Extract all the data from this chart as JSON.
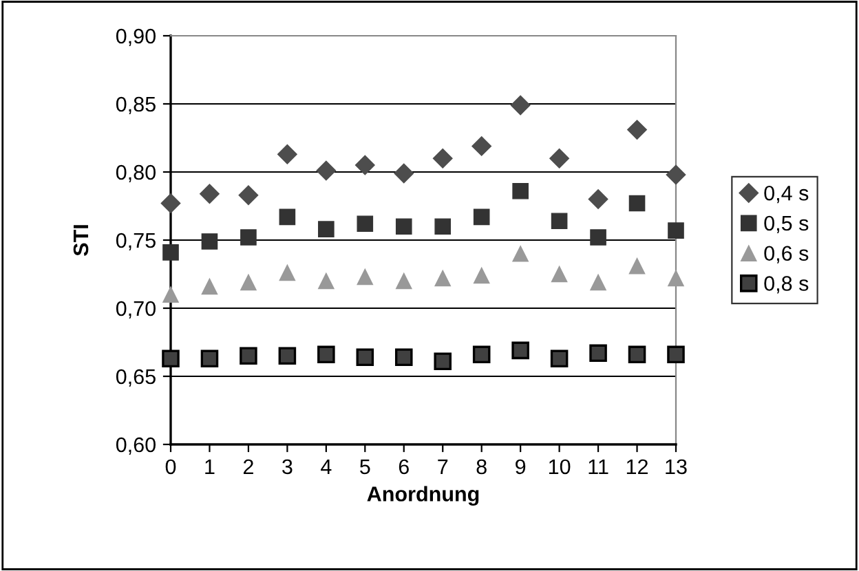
{
  "chart_data": {
    "type": "scatter",
    "xlabel": "Anordnung",
    "ylabel": "STI",
    "x": [
      0,
      1,
      2,
      3,
      4,
      5,
      6,
      7,
      8,
      9,
      10,
      11,
      12,
      13
    ],
    "xlim": [
      0,
      13
    ],
    "xticks": [
      0,
      1,
      2,
      3,
      4,
      5,
      6,
      7,
      8,
      9,
      10,
      11,
      12,
      13
    ],
    "ylim": [
      0.6,
      0.9
    ],
    "yticks": [
      {
        "value": 0.6,
        "label": "0,60"
      },
      {
        "value": 0.65,
        "label": "0,65"
      },
      {
        "value": 0.7,
        "label": "0,70"
      },
      {
        "value": 0.75,
        "label": "0,75"
      },
      {
        "value": 0.8,
        "label": "0,80"
      },
      {
        "value": 0.85,
        "label": "0,85"
      },
      {
        "value": 0.9,
        "label": "0,90"
      }
    ],
    "grid": "y",
    "legend": "right",
    "series": [
      {
        "name": "0,4 s",
        "color": "#4d4d4d",
        "marker": "diamond",
        "values": [
          0.777,
          0.784,
          0.783,
          0.813,
          0.801,
          0.805,
          0.799,
          0.81,
          0.819,
          0.849,
          0.81,
          0.78,
          0.831,
          0.798
        ]
      },
      {
        "name": "0,5 s",
        "color": "#333333",
        "marker": "square",
        "values": [
          0.741,
          0.749,
          0.752,
          0.767,
          0.758,
          0.762,
          0.76,
          0.76,
          0.767,
          0.786,
          0.764,
          0.752,
          0.777,
          0.757
        ]
      },
      {
        "name": "0,6 s",
        "color": "#999999",
        "marker": "triangle",
        "values": [
          0.71,
          0.716,
          0.719,
          0.726,
          0.72,
          0.723,
          0.72,
          0.722,
          0.724,
          0.74,
          0.725,
          0.719,
          0.731,
          0.722
        ]
      },
      {
        "name": "0,8 s",
        "color": "#404040",
        "marker": "square",
        "values": [
          0.663,
          0.663,
          0.665,
          0.665,
          0.666,
          0.664,
          0.664,
          0.661,
          0.666,
          0.669,
          0.663,
          0.667,
          0.666,
          0.666
        ]
      }
    ]
  }
}
